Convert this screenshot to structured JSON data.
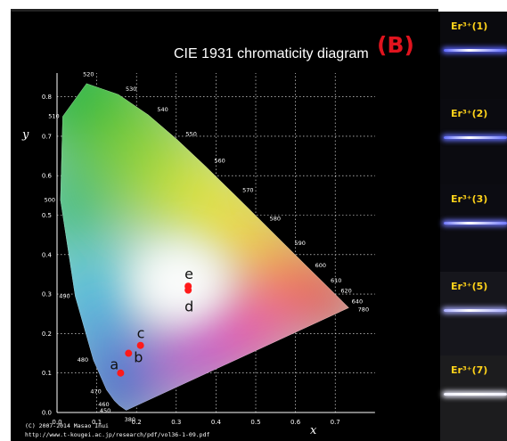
{
  "panel_label": "(B)",
  "chart_data": {
    "type": "scatter",
    "title": "CIE 1931 chromaticity diagram",
    "xlabel": "x",
    "ylabel": "y",
    "xlim": [
      0,
      0.8
    ],
    "ylim": [
      0,
      0.9
    ],
    "grid": true,
    "x_ticks": [
      "0.0",
      "0.1",
      "0.2",
      "0.3",
      "0.4",
      "0.5",
      "0.6",
      "0.7"
    ],
    "y_ticks": [
      "0.0",
      "0.1",
      "0.2",
      "0.3",
      "0.4",
      "0.5",
      "0.6",
      "0.7",
      "0.8"
    ],
    "locus": [
      {
        "nm": "380",
        "x": 0.1741,
        "y": 0.005
      },
      {
        "nm": "450",
        "x": 0.1566,
        "y": 0.0177
      },
      {
        "nm": "460",
        "x": 0.144,
        "y": 0.0297
      },
      {
        "nm": "470",
        "x": 0.1241,
        "y": 0.0578
      },
      {
        "nm": "480",
        "x": 0.0913,
        "y": 0.1327
      },
      {
        "nm": "490",
        "x": 0.0454,
        "y": 0.295
      },
      {
        "nm": "500",
        "x": 0.0082,
        "y": 0.5384
      },
      {
        "nm": "510",
        "x": 0.0139,
        "y": 0.7502
      },
      {
        "nm": "520",
        "x": 0.0743,
        "y": 0.8338
      },
      {
        "nm": "530",
        "x": 0.1547,
        "y": 0.8059
      },
      {
        "nm": "540",
        "x": 0.2296,
        "y": 0.7543
      },
      {
        "nm": "550",
        "x": 0.3016,
        "y": 0.6923
      },
      {
        "nm": "560",
        "x": 0.3731,
        "y": 0.6245
      },
      {
        "nm": "570",
        "x": 0.4441,
        "y": 0.5547
      },
      {
        "nm": "580",
        "x": 0.5125,
        "y": 0.4866
      },
      {
        "nm": "590",
        "x": 0.5752,
        "y": 0.4242
      },
      {
        "nm": "600",
        "x": 0.627,
        "y": 0.3725
      },
      {
        "nm": "610",
        "x": 0.6658,
        "y": 0.334
      },
      {
        "nm": "620",
        "x": 0.6915,
        "y": 0.3083
      },
      {
        "nm": "640",
        "x": 0.719,
        "y": 0.2809
      },
      {
        "nm": "780",
        "x": 0.7347,
        "y": 0.2653
      }
    ],
    "series": [
      {
        "values": [
          {
            "label": "a",
            "x": 0.16,
            "y": 0.1
          },
          {
            "label": "b",
            "x": 0.18,
            "y": 0.15
          },
          {
            "label": "c",
            "x": 0.21,
            "y": 0.17
          },
          {
            "label": "d",
            "x": 0.33,
            "y": 0.31
          },
          {
            "label": "e",
            "x": 0.33,
            "y": 0.32
          }
        ]
      }
    ],
    "point_color": "#ff1a1a",
    "copyright": [
      "(C) 2007-2014 Masao Inui",
      "http://www.t-kougei.ac.jp/research/pdf/vol36-1-09.pdf"
    ]
  },
  "samples": [
    {
      "label": "Er³⁺(1)",
      "line_color": "#5a64ff"
    },
    {
      "label": "Er³⁺(2)",
      "line_color": "#6470ff"
    },
    {
      "label": "Er³⁺(3)",
      "line_color": "#7078ff"
    },
    {
      "label": "Er³⁺(5)",
      "line_color": "#a8acff"
    },
    {
      "label": "Er³⁺(7)",
      "line_color": "#f0f0ff"
    }
  ]
}
